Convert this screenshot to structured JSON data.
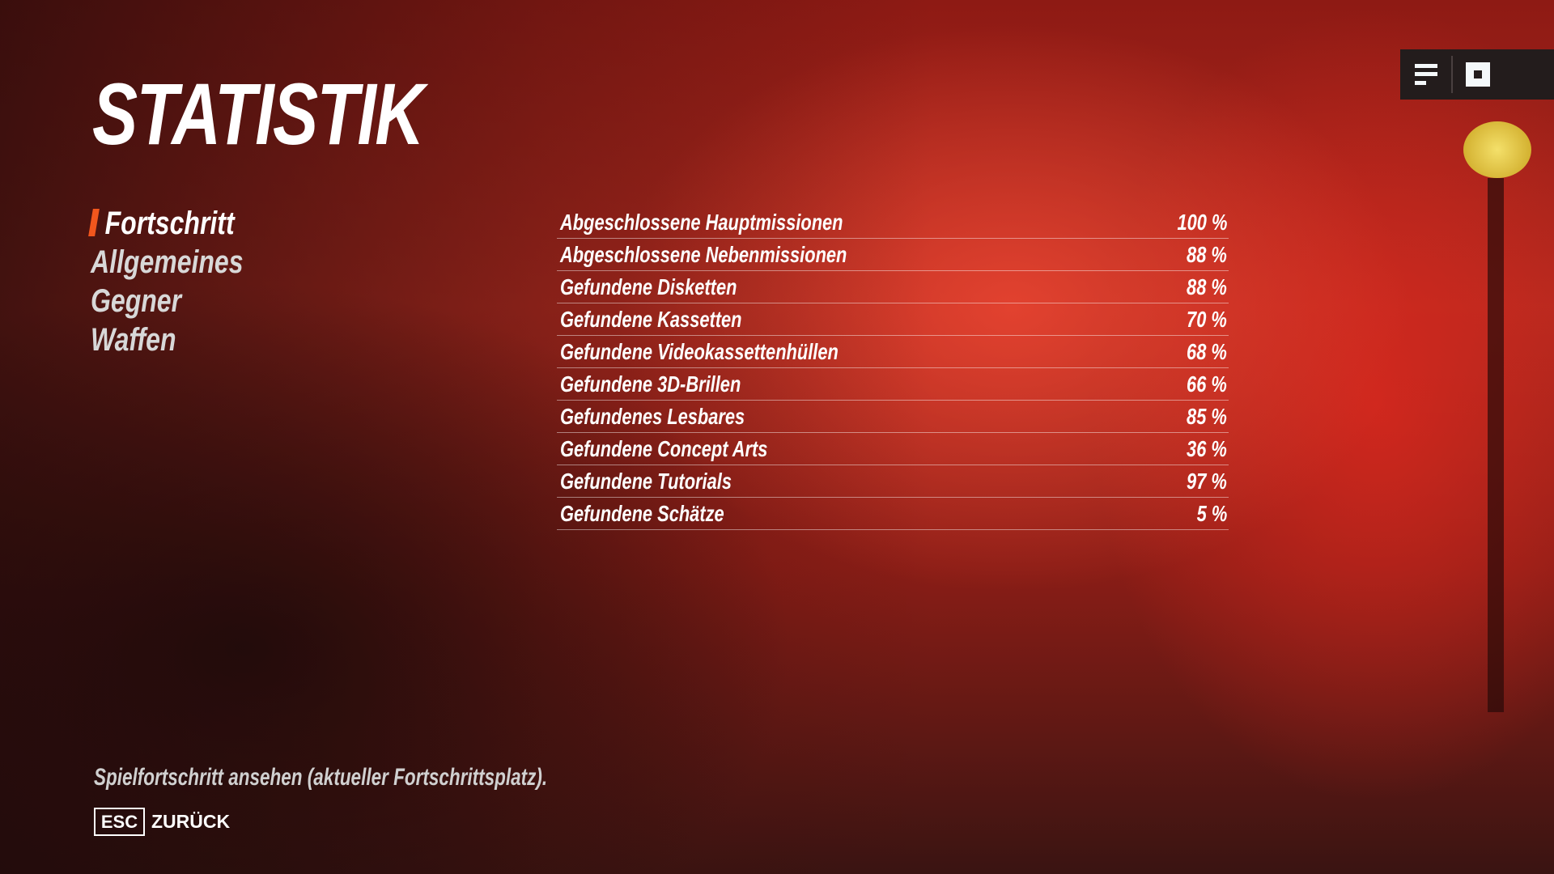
{
  "page_title": "STATISTIK",
  "menu": {
    "items": [
      {
        "label": "Fortschritt",
        "active": true
      },
      {
        "label": "Allgemeines",
        "active": false
      },
      {
        "label": "Gegner",
        "active": false
      },
      {
        "label": "Waffen",
        "active": false
      }
    ]
  },
  "stats": [
    {
      "label": "Abgeschlossene Hauptmissionen",
      "value": "100 %"
    },
    {
      "label": "Abgeschlossene Nebenmissionen",
      "value": "88 %"
    },
    {
      "label": "Gefundene Disketten",
      "value": "88 %"
    },
    {
      "label": "Gefundene Kassetten",
      "value": "70 %"
    },
    {
      "label": "Gefundene Videokassettenhüllen",
      "value": "68 %"
    },
    {
      "label": "Gefundene 3D-Brillen",
      "value": "66 %"
    },
    {
      "label": "Gefundenes Lesbares",
      "value": "85 %"
    },
    {
      "label": "Gefundene Concept Arts",
      "value": "36 %"
    },
    {
      "label": "Gefundene Tutorials",
      "value": "97 %"
    },
    {
      "label": "Gefundene Schätze",
      "value": "5 %"
    }
  ],
  "footer": {
    "hint": "Spielfortschritt ansehen (aktueller Fortschrittsplatz).",
    "esc_key": "ESC",
    "back_label": "ZURÜCK"
  },
  "top_icons": [
    "menu-lines-icon",
    "stop-square-icon"
  ],
  "colors": {
    "accent": "#f2561d",
    "panel": "#231c1c"
  }
}
